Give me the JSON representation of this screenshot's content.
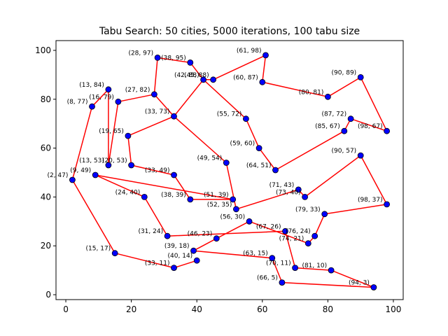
{
  "chart_data": {
    "type": "scatter",
    "title": "Tabu Search: 50 cities, 5000 iterations, 100 tabu size",
    "xlabel": "",
    "ylabel": "",
    "xlim": [
      -3,
      103
    ],
    "ylim": [
      -2,
      104
    ],
    "xticks": [
      0,
      20,
      40,
      60,
      80,
      100
    ],
    "yticks": [
      0,
      20,
      40,
      60,
      80,
      100
    ],
    "grid": false,
    "point_color": "#0000ff",
    "edge_color": "#000000",
    "route_color": "#ff0000",
    "cities": [
      {
        "x": 2,
        "y": 47,
        "label": "(2, 47)"
      },
      {
        "x": 8,
        "y": 77,
        "label": "(8, 77)"
      },
      {
        "x": 9,
        "y": 49,
        "label": "(9, 49)"
      },
      {
        "x": 13,
        "y": 53,
        "label": "(13, 53)"
      },
      {
        "x": 13,
        "y": 84,
        "label": "(13, 84)"
      },
      {
        "x": 15,
        "y": 17,
        "label": "(15, 17)"
      },
      {
        "x": 16,
        "y": 79,
        "label": "(16, 79)"
      },
      {
        "x": 19,
        "y": 65,
        "label": "(19, 65)"
      },
      {
        "x": 20,
        "y": 53,
        "label": "(20, 53)"
      },
      {
        "x": 24,
        "y": 40,
        "label": "(24, 40)"
      },
      {
        "x": 27,
        "y": 82,
        "label": "(27, 82)"
      },
      {
        "x": 28,
        "y": 97,
        "label": "(28, 97)"
      },
      {
        "x": 31,
        "y": 24,
        "label": "(31, 24)"
      },
      {
        "x": 33,
        "y": 11,
        "label": "(33, 11)"
      },
      {
        "x": 33,
        "y": 49,
        "label": "(33, 49)"
      },
      {
        "x": 33,
        "y": 73,
        "label": "(33, 73)"
      },
      {
        "x": 38,
        "y": 39,
        "label": "(38, 39)"
      },
      {
        "x": 38,
        "y": 95,
        "label": "(38, 95)"
      },
      {
        "x": 39,
        "y": 18,
        "label": "(39, 18)"
      },
      {
        "x": 40,
        "y": 14,
        "label": "(40, 14)"
      },
      {
        "x": 42,
        "y": 88,
        "label": "(42, 88)"
      },
      {
        "x": 45,
        "y": 88,
        "label": "(45, 88)"
      },
      {
        "x": 46,
        "y": 23,
        "label": "(46, 23)"
      },
      {
        "x": 49,
        "y": 54,
        "label": "(49, 54)"
      },
      {
        "x": 51,
        "y": 39,
        "label": "(51, 39)"
      },
      {
        "x": 52,
        "y": 35,
        "label": "(52, 35)"
      },
      {
        "x": 55,
        "y": 72,
        "label": "(55, 72)"
      },
      {
        "x": 56,
        "y": 30,
        "label": "(56, 30)"
      },
      {
        "x": 59,
        "y": 60,
        "label": "(59, 60)"
      },
      {
        "x": 60,
        "y": 87,
        "label": "(60, 87)"
      },
      {
        "x": 61,
        "y": 98,
        "label": "(61, 98)"
      },
      {
        "x": 63,
        "y": 15,
        "label": "(63, 15)"
      },
      {
        "x": 64,
        "y": 51,
        "label": "(64, 51)"
      },
      {
        "x": 66,
        "y": 5,
        "label": "(66, 5)"
      },
      {
        "x": 67,
        "y": 26,
        "label": "(67, 26)"
      },
      {
        "x": 70,
        "y": 11,
        "label": "(70, 11)"
      },
      {
        "x": 71,
        "y": 43,
        "label": "(71, 43)"
      },
      {
        "x": 73,
        "y": 40,
        "label": "(73, 40)"
      },
      {
        "x": 74,
        "y": 21,
        "label": "(74, 21)"
      },
      {
        "x": 76,
        "y": 24,
        "label": "(76, 24)"
      },
      {
        "x": 79,
        "y": 33,
        "label": "(79, 33)"
      },
      {
        "x": 80,
        "y": 81,
        "label": "(80, 81)"
      },
      {
        "x": 81,
        "y": 10,
        "label": "(81, 10)"
      },
      {
        "x": 85,
        "y": 67,
        "label": "(85, 67)"
      },
      {
        "x": 87,
        "y": 72,
        "label": "(87, 72)"
      },
      {
        "x": 90,
        "y": 57,
        "label": "(90, 57)"
      },
      {
        "x": 90,
        "y": 89,
        "label": "(90, 89)"
      },
      {
        "x": 94,
        "y": 3,
        "label": "(94, 3)"
      },
      {
        "x": 98,
        "y": 37,
        "label": "(98, 37)"
      },
      {
        "x": 98,
        "y": 67,
        "label": "(98, 67)"
      }
    ],
    "route": [
      [
        2,
        47
      ],
      [
        8,
        77
      ],
      [
        13,
        84
      ],
      [
        13,
        53
      ],
      [
        16,
        79
      ],
      [
        27,
        82
      ],
      [
        28,
        97
      ],
      [
        38,
        95
      ],
      [
        42,
        88
      ],
      [
        55,
        72
      ],
      [
        59,
        60
      ],
      [
        64,
        51
      ],
      [
        85,
        67
      ],
      [
        87,
        72
      ],
      [
        98,
        67
      ],
      [
        90,
        89
      ],
      [
        80,
        81
      ],
      [
        60,
        87
      ],
      [
        61,
        98
      ],
      [
        45,
        88
      ],
      [
        42,
        88
      ],
      [
        33,
        73
      ],
      [
        19,
        65
      ],
      [
        20,
        53
      ],
      [
        33,
        49
      ],
      [
        38,
        39
      ],
      [
        51,
        39
      ],
      [
        9,
        49
      ],
      [
        24,
        40
      ],
      [
        31,
        24
      ],
      [
        67,
        26
      ],
      [
        70,
        11
      ],
      [
        81,
        10
      ],
      [
        94,
        3
      ],
      [
        66,
        5
      ],
      [
        63,
        15
      ],
      [
        39,
        18
      ],
      [
        46,
        23
      ],
      [
        56,
        30
      ],
      [
        74,
        21
      ],
      [
        76,
        24
      ],
      [
        79,
        33
      ],
      [
        98,
        37
      ],
      [
        90,
        57
      ],
      [
        73,
        40
      ],
      [
        71,
        43
      ],
      [
        52,
        35
      ],
      [
        49,
        54
      ],
      [
        33,
        73
      ],
      [
        27,
        82
      ]
    ],
    "route_tail": [
      [
        40,
        14
      ],
      [
        33,
        11
      ],
      [
        15,
        17
      ],
      [
        2,
        47
      ]
    ]
  }
}
